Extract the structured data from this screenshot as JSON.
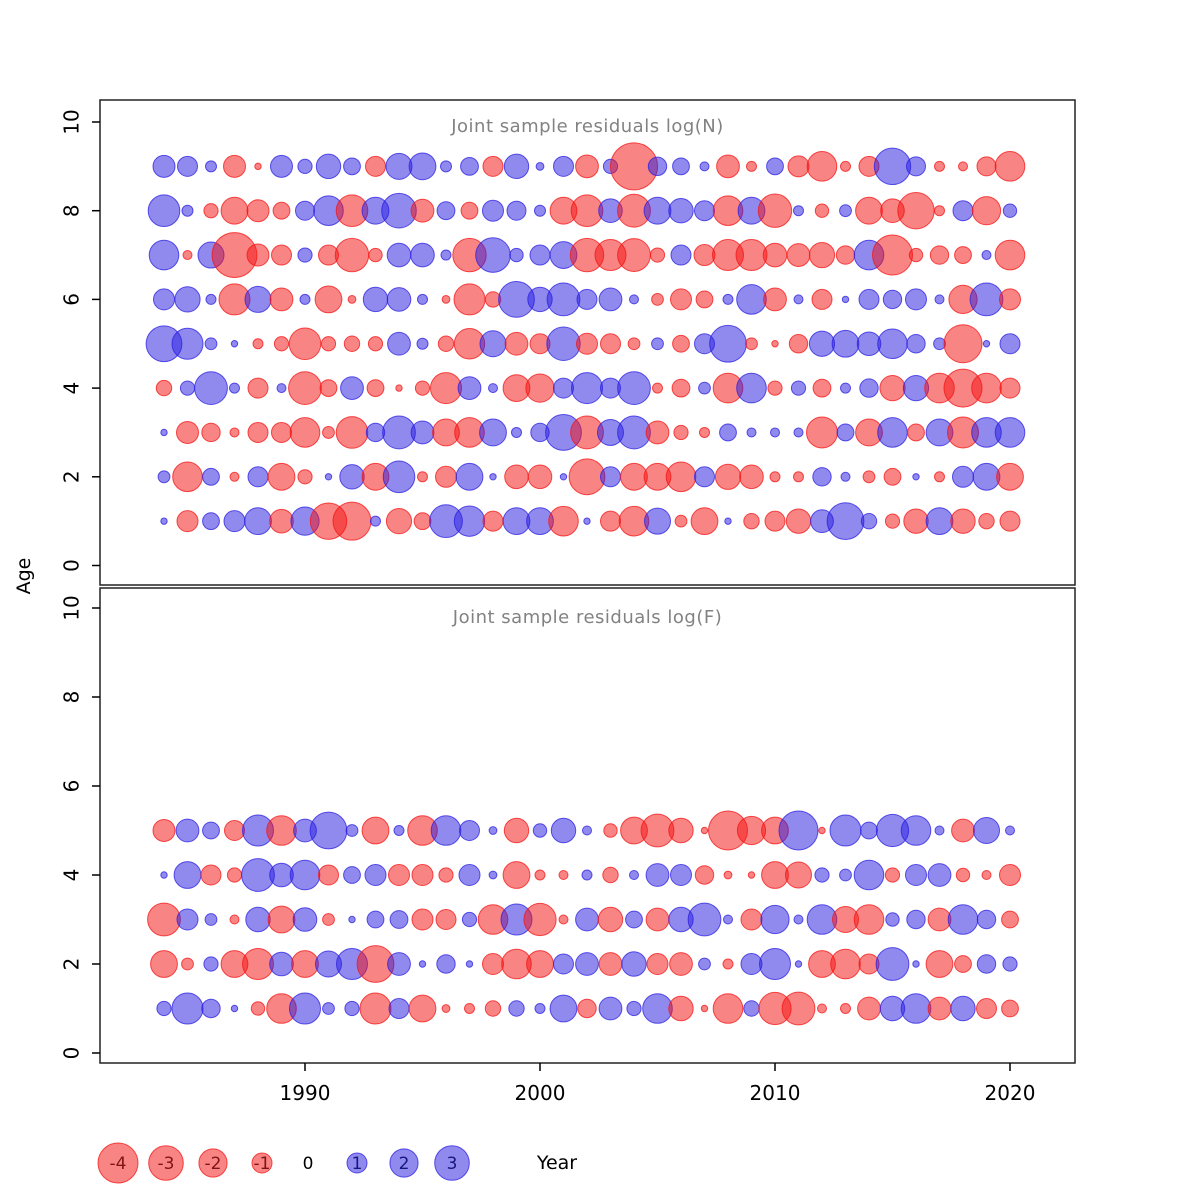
{
  "figure": {
    "y_label": "Age",
    "x_label": "Year",
    "x_ticks": [
      "1990",
      "2000",
      "2010",
      "2020"
    ],
    "panels": [
      {
        "title": "Joint sample residuals log(N)",
        "y_ticks": [
          "0",
          "2",
          "4",
          "6",
          "8",
          "10"
        ]
      },
      {
        "title": "Joint sample residuals log(F)",
        "y_ticks": [
          "0",
          "2",
          "4",
          "6",
          "8",
          "10"
        ]
      }
    ],
    "legend": {
      "items": [
        {
          "label": "-4",
          "value": -4
        },
        {
          "label": "-3",
          "value": -3
        },
        {
          "label": "-2",
          "value": -2
        },
        {
          "label": "-1",
          "value": -1
        },
        {
          "label": "0",
          "value": 0
        },
        {
          "label": "1",
          "value": 1
        },
        {
          "label": "2",
          "value": 2
        },
        {
          "label": "3",
          "value": 3
        }
      ]
    },
    "colors": {
      "negative_fill": "#F41414",
      "positive_fill": "#2B1FE0",
      "bubble_opacity": 0.52,
      "stroke_opacity": 0.75,
      "negative_label": "#7F1414",
      "positive_label": "#16167F",
      "zero_label": "#000000",
      "title_color": "#828282",
      "box_color": "#222222"
    }
  },
  "chart_data": [
    {
      "type": "scatter",
      "subtype": "bubble-residuals",
      "title": "Joint sample residuals log(N)",
      "xlabel": "Year",
      "ylabel": "Age",
      "xlim": [
        1982,
        2022
      ],
      "ylim": [
        0,
        10
      ],
      "xticks": [
        1990,
        2000,
        2010,
        2020
      ],
      "yticks": [
        0,
        2,
        4,
        6,
        8,
        10
      ],
      "grid": false,
      "size_rule": "radius_px = 10 * sqrt(abs(value))",
      "color_rule": "red = negative residual, blue = positive residual",
      "x": [
        1984,
        1985,
        1986,
        1987,
        1988,
        1989,
        1990,
        1991,
        1992,
        1993,
        1994,
        1995,
        1996,
        1997,
        1998,
        1999,
        2000,
        2001,
        2002,
        2003,
        2004,
        2005,
        2006,
        2007,
        2008,
        2009,
        2010,
        2011,
        2012,
        2013,
        2014,
        2015,
        2016,
        2017,
        2018,
        2019,
        2020
      ],
      "series": [
        {
          "name": "age 9",
          "age": 9,
          "values": [
            1.2,
            1.0,
            0.3,
            -1.2,
            -0.1,
            1.2,
            0.5,
            1.5,
            0.7,
            -1.0,
            1.7,
            1.8,
            0.3,
            0.8,
            -1.0,
            1.5,
            0.15,
            1.0,
            -1.3,
            0.5,
            -5.5,
            0.85,
            0.7,
            0.2,
            -1.3,
            -0.25,
            0.7,
            -1.1,
            -2.2,
            -0.25,
            -1.0,
            3.3,
            0.9,
            -0.25,
            -0.2,
            -0.9,
            -2.2
          ]
        },
        {
          "name": "age 8",
          "age": 8,
          "values": [
            2.5,
            0.3,
            -0.5,
            -1.8,
            -1.2,
            -0.7,
            0.9,
            2.2,
            -2.5,
            1.8,
            3.0,
            -1.3,
            0.8,
            -0.7,
            1.1,
            0.9,
            0.3,
            -1.8,
            -2.5,
            1.4,
            -2.7,
            1.8,
            1.5,
            1.0,
            -2.2,
            1.8,
            -2.8,
            0.25,
            -0.45,
            0.35,
            -1.8,
            -1.4,
            -3.3,
            -0.25,
            1.0,
            -2.0,
            0.45
          ]
        },
        {
          "name": "age 7",
          "age": 7,
          "values": [
            2.2,
            -0.2,
            1.7,
            -5.0,
            -1.2,
            -1.0,
            0.5,
            -1.0,
            -2.8,
            -0.45,
            1.4,
            1.4,
            0.25,
            -2.8,
            3.0,
            0.45,
            1.0,
            1.8,
            -2.8,
            -2.4,
            -2.7,
            -0.5,
            1.0,
            -1.1,
            -2.4,
            -2.4,
            -1.4,
            -1.3,
            -1.6,
            -0.85,
            2.2,
            -4.0,
            -0.45,
            -0.85,
            -0.7,
            0.2,
            -2.2
          ]
        },
        {
          "name": "age 6",
          "age": 6,
          "values": [
            1.1,
            1.6,
            0.25,
            -2.4,
            1.7,
            -1.3,
            0.25,
            -1.8,
            -0.15,
            1.5,
            1.4,
            0.25,
            -0.15,
            -2.4,
            -0.6,
            3.2,
            1.5,
            2.7,
            1.0,
            1.3,
            0.2,
            -0.35,
            -1.1,
            -0.7,
            0.25,
            2.2,
            -1.3,
            0.2,
            -1.0,
            0.1,
            1.0,
            0.85,
            1.1,
            0.2,
            -2.0,
            2.7,
            -1.1
          ]
        },
        {
          "name": "age 5",
          "age": 5,
          "values": [
            3.2,
            2.4,
            0.35,
            0.1,
            -0.25,
            -0.5,
            -2.5,
            -0.5,
            -0.6,
            -0.5,
            1.3,
            0.3,
            -0.6,
            -2.3,
            1.7,
            -1.3,
            -1.0,
            2.8,
            -1.1,
            -1.0,
            -0.35,
            0.35,
            -0.7,
            1.0,
            3.4,
            -0.35,
            -0.1,
            -0.85,
            1.6,
            1.8,
            1.4,
            2.2,
            0.85,
            0.35,
            -3.6,
            0.1,
            1.0
          ]
        },
        {
          "name": "age 4",
          "age": 4,
          "values": [
            -0.6,
            0.5,
            2.7,
            0.25,
            -1.0,
            0.2,
            -2.7,
            -0.7,
            1.3,
            -0.7,
            -0.1,
            -0.5,
            -2.4,
            1.3,
            0.2,
            -1.8,
            -2.0,
            1.0,
            2.4,
            1.0,
            2.7,
            -0.25,
            -0.8,
            0.35,
            -2.2,
            2.2,
            -0.5,
            0.5,
            -0.8,
            0.25,
            0.85,
            -1.6,
            1.6,
            -2.2,
            -3.6,
            -2.2,
            -1.0
          ]
        },
        {
          "name": "age 3",
          "age": 3,
          "values": [
            0.1,
            -1.2,
            -0.85,
            -0.2,
            -1.0,
            -1.0,
            -2.2,
            -0.35,
            -2.5,
            0.85,
            2.7,
            1.3,
            -1.8,
            -2.2,
            1.8,
            0.25,
            0.85,
            3.2,
            -2.7,
            1.7,
            2.7,
            -1.3,
            -0.5,
            -0.25,
            0.7,
            0.2,
            0.2,
            0.2,
            -2.4,
            0.7,
            -1.8,
            2.2,
            -0.7,
            1.8,
            -2.4,
            2.2,
            2.2
          ]
        },
        {
          "name": "age 2",
          "age": 2,
          "values": [
            0.35,
            -2.2,
            0.7,
            -0.2,
            1.0,
            -1.8,
            -0.5,
            0.1,
            1.5,
            -1.8,
            2.5,
            -0.25,
            -1.1,
            1.8,
            0.1,
            -1.4,
            -1.4,
            0.1,
            -3.2,
            1.0,
            -1.8,
            -1.8,
            -2.2,
            1.0,
            -1.6,
            -1.4,
            -0.25,
            -0.25,
            0.85,
            0.2,
            -0.35,
            -0.7,
            0.1,
            -0.25,
            1.1,
            1.8,
            -1.8
          ]
        },
        {
          "name": "age 1",
          "age": 1,
          "values": [
            0.1,
            -1.1,
            0.7,
            1.1,
            1.8,
            -1.4,
            2.0,
            -3.3,
            -3.6,
            0.25,
            -1.6,
            -0.7,
            2.7,
            2.3,
            -1.0,
            1.8,
            1.8,
            -2.2,
            0.1,
            -1.0,
            -2.2,
            1.7,
            -0.35,
            -1.8,
            0.1,
            -0.6,
            -1.0,
            -1.5,
            1.3,
            3.4,
            0.6,
            -0.5,
            -1.5,
            1.8,
            -1.5,
            -0.6,
            -1.0
          ]
        }
      ]
    },
    {
      "type": "scatter",
      "subtype": "bubble-residuals",
      "title": "Joint sample residuals log(F)",
      "xlabel": "Year",
      "ylabel": "Age",
      "xlim": [
        1982,
        2022
      ],
      "ylim": [
        0,
        10
      ],
      "xticks": [
        1990,
        2000,
        2010,
        2020
      ],
      "yticks": [
        0,
        2,
        4,
        6,
        8,
        10
      ],
      "grid": false,
      "size_rule": "radius_px = 10 * sqrt(abs(value))",
      "color_rule": "red = negative residual, blue = positive residual",
      "x": [
        1984,
        1985,
        1986,
        1987,
        1988,
        1989,
        1990,
        1991,
        1992,
        1993,
        1994,
        1995,
        1996,
        1997,
        1998,
        1999,
        2000,
        2001,
        2002,
        2003,
        2004,
        2005,
        2006,
        2007,
        2008,
        2009,
        2010,
        2011,
        2012,
        2013,
        2014,
        2015,
        2016,
        2017,
        2018,
        2019,
        2020
      ],
      "series": [
        {
          "name": "age 5",
          "age": 5,
          "values": [
            -1.2,
            1.3,
            0.7,
            -1.0,
            2.4,
            -2.2,
            1.3,
            3.4,
            0.35,
            -1.8,
            0.25,
            -2.2,
            2.2,
            1.0,
            0.15,
            -1.5,
            0.45,
            1.5,
            0.2,
            -0.45,
            -1.8,
            -2.7,
            -1.5,
            -0.1,
            -3.8,
            -2.0,
            -1.8,
            3.8,
            -0.1,
            2.4,
            0.7,
            2.6,
            2.2,
            0.2,
            -1.3,
            1.7,
            0.2
          ]
        },
        {
          "name": "age 4",
          "age": 4,
          "values": [
            0.1,
            1.8,
            -1.0,
            -0.5,
            2.7,
            1.4,
            2.2,
            -1.0,
            0.7,
            1.1,
            -1.1,
            -1.1,
            -0.5,
            1.1,
            0.15,
            -1.8,
            -0.25,
            -0.2,
            0.25,
            -0.6,
            0.2,
            1.3,
            1.1,
            -0.85,
            -0.15,
            -0.1,
            -1.8,
            -1.7,
            0.5,
            0.35,
            2.2,
            -0.5,
            1.1,
            1.3,
            -0.45,
            -0.2,
            -1.1
          ]
        },
        {
          "name": "age 3",
          "age": 3,
          "values": [
            -2.7,
            1.1,
            0.35,
            -0.2,
            1.5,
            -1.8,
            1.4,
            -0.35,
            0.1,
            0.7,
            0.8,
            -1.1,
            -1.0,
            0.5,
            -2.2,
            2.4,
            -2.6,
            -0.2,
            1.3,
            -1.5,
            0.7,
            -1.3,
            1.5,
            2.7,
            0.2,
            -1.1,
            2.0,
            0.2,
            2.2,
            -1.7,
            -2.2,
            0.45,
            0.85,
            -1.3,
            2.2,
            0.85,
            -0.7
          ]
        },
        {
          "name": "age 2",
          "age": 2,
          "values": [
            -1.8,
            -0.35,
            0.5,
            -1.8,
            -2.4,
            1.4,
            -1.8,
            1.7,
            2.4,
            -3.4,
            1.3,
            0.1,
            0.85,
            0.1,
            -1.1,
            -2.2,
            -1.8,
            1.0,
            1.3,
            -1.3,
            1.5,
            -1.1,
            -1.3,
            0.35,
            -0.25,
            1.1,
            2.4,
            0.1,
            -1.8,
            -2.2,
            -1.0,
            2.7,
            0.1,
            -1.8,
            -0.7,
            0.85,
            0.5
          ]
        },
        {
          "name": "age 1",
          "age": 1,
          "values": [
            0.5,
            2.4,
            0.85,
            0.1,
            -0.45,
            -2.2,
            2.4,
            0.35,
            0.5,
            -2.4,
            1.0,
            -1.8,
            -0.15,
            -0.25,
            -0.6,
            0.6,
            0.25,
            1.8,
            -0.85,
            1.3,
            0.5,
            2.2,
            -1.5,
            -0.1,
            -2.2,
            0.6,
            -2.6,
            -2.7,
            -0.2,
            -0.25,
            -1.3,
            1.5,
            2.2,
            -1.3,
            1.5,
            -1.0,
            -0.7
          ]
        }
      ]
    }
  ]
}
